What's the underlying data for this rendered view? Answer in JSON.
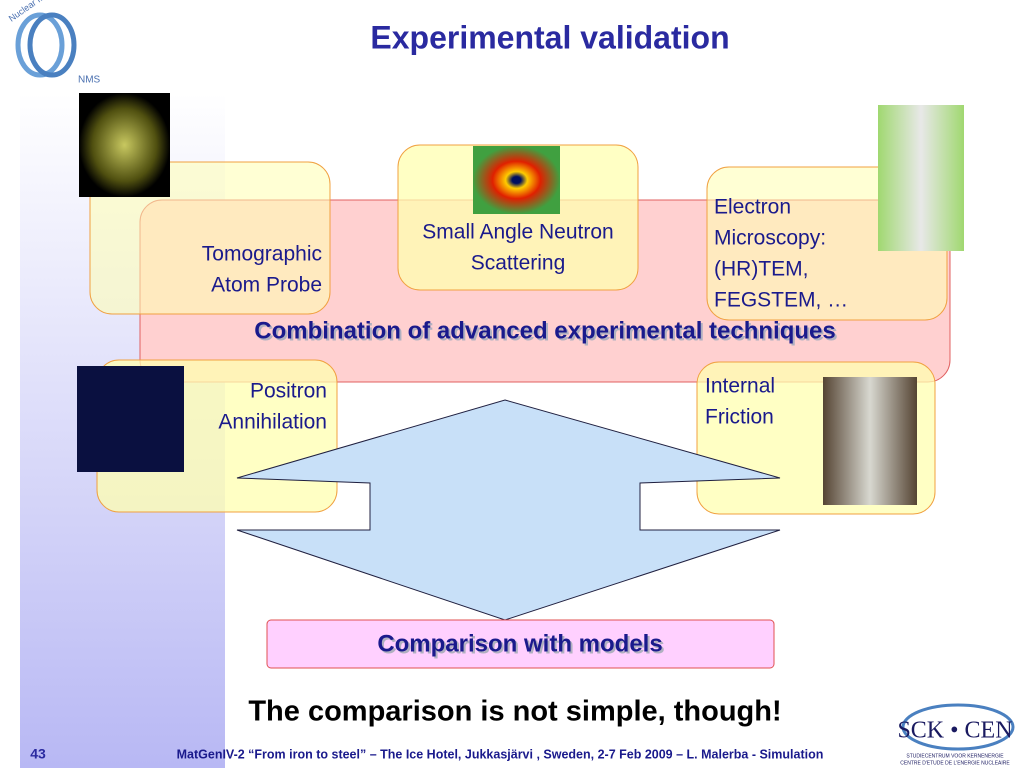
{
  "header": {
    "title": "Experimental validation",
    "logo_left": {
      "arc_text": "Nuclear Materials Science",
      "abbr": "NMS"
    }
  },
  "techniques": [
    {
      "lines": [
        "Tomographic",
        "Atom Probe"
      ]
    },
    {
      "lines": [
        "Small Angle Neutron",
        "Scattering"
      ]
    },
    {
      "lines": [
        "Electron",
        "Microscopy:",
        "(HR)TEM,",
        "FEGSTEM, …"
      ]
    },
    {
      "lines": [
        "Positron",
        "Annihilation"
      ]
    },
    {
      "lines": [
        "Internal",
        "Friction"
      ]
    }
  ],
  "combination": "Combination of advanced experimental techniques",
  "comparison": "Comparison with models",
  "statement": "The comparison is not simple, though!",
  "footer": {
    "page": "43",
    "text": "MatGenIV-2 “From iron to steel” – The Ice Hotel, Jukkasjärvi , Sweden, 2-7 Feb 2009 – L. Malerba - Simulation",
    "logo_right": {
      "name": "SCK • CEN",
      "line1": "STUDIECENTRUM VOOR KERNENERGIE",
      "line2": "CENTRE D'ETUDE DE L'ENERGIE NUCLEAIRE"
    }
  }
}
